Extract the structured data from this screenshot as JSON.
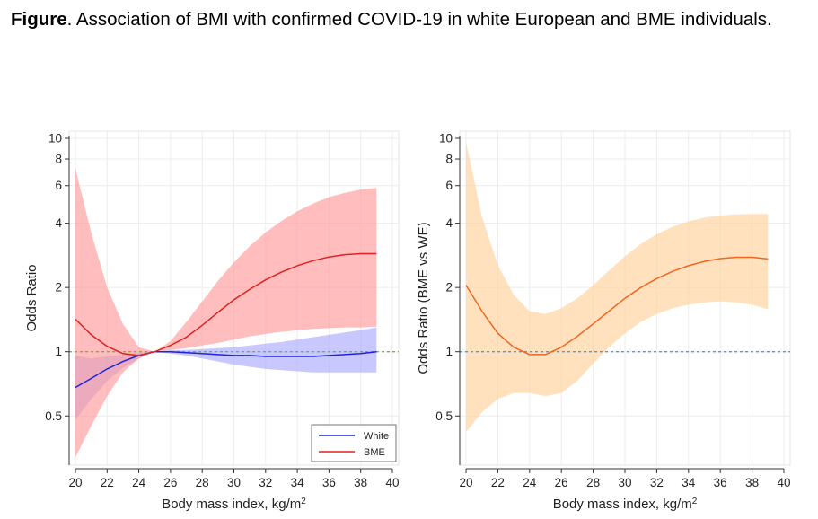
{
  "caption": {
    "bold": "Figure",
    "text": ". Association of BMI with confirmed COVID-19 in white European and BME individuals."
  },
  "chart_data": [
    {
      "type": "line",
      "title": "",
      "xlabel": "Body mass index, kg/m",
      "xlabel_sup": "2",
      "ylabel": "Odds Ratio",
      "xlim": [
        20,
        40
      ],
      "ylim": [
        0.3,
        10
      ],
      "yscale": "log",
      "xticks": [
        "20",
        "22",
        "24",
        "26",
        "28",
        "30",
        "32",
        "34",
        "36",
        "38",
        "40"
      ],
      "yticks": [
        {
          "value": 0.5,
          "label": "0.5"
        },
        {
          "value": 1,
          "label": "1"
        },
        {
          "value": 2,
          "label": "2"
        },
        {
          "value": 4,
          "label": "4"
        },
        {
          "value": 6,
          "label": "6"
        },
        {
          "value": 8,
          "label": "8"
        },
        {
          "value": 10,
          "label": "10"
        }
      ],
      "grid": true,
      "reference_line": {
        "y": 1,
        "color": "#66bb44"
      },
      "legend": {
        "placement": "bottom-right",
        "entries": [
          "White",
          "BME"
        ]
      },
      "series": [
        {
          "name": "White",
          "color": "#2222dd",
          "band_color": "#aaaaff",
          "x": [
            20,
            21,
            22,
            23,
            24,
            25,
            26,
            27,
            28,
            29,
            30,
            31,
            32,
            33,
            34,
            35,
            36,
            37,
            38,
            39
          ],
          "y": [
            0.68,
            0.75,
            0.83,
            0.9,
            0.96,
            1.0,
            1.0,
            0.99,
            0.98,
            0.97,
            0.96,
            0.96,
            0.95,
            0.95,
            0.95,
            0.95,
            0.96,
            0.97,
            0.98,
            1.0
          ],
          "lower": [
            0.48,
            0.6,
            0.73,
            0.84,
            0.93,
            1.0,
            0.98,
            0.96,
            0.93,
            0.9,
            0.87,
            0.85,
            0.83,
            0.82,
            0.81,
            0.8,
            0.8,
            0.8,
            0.8,
            0.8
          ],
          "upper": [
            0.96,
            0.93,
            0.95,
            0.97,
            0.99,
            1.0,
            1.02,
            1.02,
            1.03,
            1.04,
            1.05,
            1.07,
            1.09,
            1.11,
            1.14,
            1.17,
            1.2,
            1.23,
            1.26,
            1.3
          ]
        },
        {
          "name": "BME",
          "color": "#dd2222",
          "band_color": "#ff9999",
          "x": [
            20,
            21,
            22,
            23,
            24,
            25,
            26,
            27,
            28,
            29,
            30,
            31,
            32,
            33,
            34,
            35,
            36,
            37,
            38,
            39
          ],
          "y": [
            1.42,
            1.2,
            1.06,
            0.98,
            0.96,
            1.0,
            1.07,
            1.17,
            1.33,
            1.53,
            1.75,
            1.96,
            2.17,
            2.36,
            2.53,
            2.67,
            2.78,
            2.85,
            2.88,
            2.88
          ],
          "lower": [
            0.32,
            0.45,
            0.62,
            0.8,
            0.93,
            1.0,
            1.02,
            1.04,
            1.07,
            1.1,
            1.14,
            1.18,
            1.21,
            1.24,
            1.26,
            1.28,
            1.29,
            1.3,
            1.3,
            1.31
          ],
          "upper": [
            7.2,
            3.6,
            2.0,
            1.35,
            1.05,
            1.0,
            1.12,
            1.38,
            1.72,
            2.15,
            2.62,
            3.12,
            3.62,
            4.1,
            4.55,
            4.95,
            5.3,
            5.55,
            5.75,
            5.85
          ]
        }
      ]
    },
    {
      "type": "line",
      "title": "",
      "xlabel": "Body mass index, kg/m",
      "xlabel_sup": "2",
      "ylabel": "Odds Ratio (BME vs WE)",
      "xlim": [
        20,
        40
      ],
      "ylim": [
        0.3,
        10
      ],
      "yscale": "log",
      "xticks": [
        "20",
        "22",
        "24",
        "26",
        "28",
        "30",
        "32",
        "34",
        "36",
        "38",
        "40"
      ],
      "yticks": [
        {
          "value": 0.5,
          "label": "0.5"
        },
        {
          "value": 1,
          "label": "1"
        },
        {
          "value": 2,
          "label": "2"
        },
        {
          "value": 4,
          "label": "4"
        },
        {
          "value": 6,
          "label": "6"
        },
        {
          "value": 8,
          "label": "8"
        },
        {
          "value": 10,
          "label": "10"
        }
      ],
      "grid": true,
      "reference_line": {
        "y": 1,
        "color": "#5599dd"
      },
      "series": [
        {
          "name": "",
          "color": "#ee6622",
          "band_color": "#ffd29a",
          "x": [
            20,
            21,
            22,
            23,
            24,
            25,
            26,
            27,
            28,
            29,
            30,
            31,
            32,
            33,
            34,
            35,
            36,
            37,
            38,
            39
          ],
          "y": [
            2.05,
            1.55,
            1.22,
            1.05,
            0.97,
            0.97,
            1.05,
            1.18,
            1.35,
            1.55,
            1.78,
            2.0,
            2.2,
            2.38,
            2.53,
            2.65,
            2.73,
            2.77,
            2.77,
            2.72
          ],
          "lower": [
            0.42,
            0.52,
            0.6,
            0.64,
            0.64,
            0.62,
            0.64,
            0.73,
            0.88,
            1.05,
            1.22,
            1.38,
            1.5,
            1.6,
            1.66,
            1.7,
            1.72,
            1.7,
            1.66,
            1.58
          ],
          "upper": [
            9.6,
            4.3,
            2.55,
            1.85,
            1.55,
            1.5,
            1.6,
            1.78,
            2.05,
            2.4,
            2.8,
            3.2,
            3.55,
            3.85,
            4.08,
            4.25,
            4.35,
            4.4,
            4.42,
            4.42
          ]
        }
      ]
    }
  ]
}
